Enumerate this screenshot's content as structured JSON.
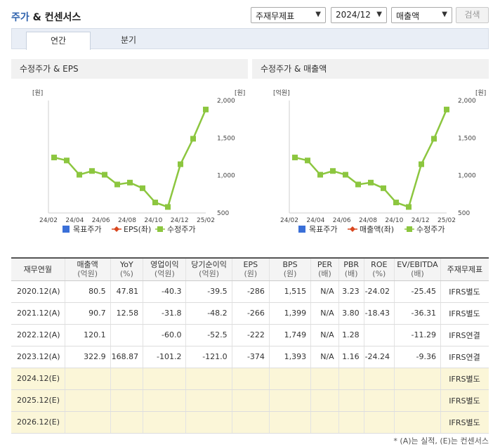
{
  "header": {
    "title_a": "주가",
    "title_b": "& 컨센서스"
  },
  "controls": {
    "report_select": "주재무제표",
    "period_select": "2024/12",
    "metric_select": "매출액",
    "search_label": "검색"
  },
  "tabs": [
    {
      "label": "연간"
    },
    {
      "label": "분기"
    }
  ],
  "chart_left": {
    "title": "수정주가 & EPS",
    "left_unit": "[원]",
    "right_unit": "[원]",
    "legend": [
      "목표주가",
      "EPS(좌)",
      "수정주가"
    ]
  },
  "chart_right": {
    "title": "수정주가 & 매출액",
    "left_unit": "[억원]",
    "right_unit": "[원]",
    "legend": [
      "목표주가",
      "매출액(좌)",
      "수정주가"
    ]
  },
  "chart_data": [
    {
      "type": "line",
      "title": "수정주가 & EPS",
      "x_ticks": [
        "24/02",
        "24/04",
        "24/06",
        "24/08",
        "24/10",
        "24/12",
        "25/02"
      ],
      "y_right_ticks": [
        "2,000",
        "1,500",
        "1,000",
        "500"
      ],
      "y_right_range": [
        500,
        2000
      ],
      "series": [
        {
          "name": "수정주가",
          "color": "#8cc63f",
          "values": [
            1240,
            1200,
            1010,
            1060,
            1010,
            880,
            905,
            830,
            640,
            580,
            1150,
            1490,
            1880
          ]
        }
      ]
    },
    {
      "type": "line",
      "title": "수정주가 & 매출액",
      "x_ticks": [
        "24/02",
        "24/04",
        "24/06",
        "24/08",
        "24/10",
        "24/12",
        "25/02"
      ],
      "y_right_ticks": [
        "2,000",
        "1,500",
        "1,000",
        "500"
      ],
      "y_right_range": [
        500,
        2000
      ],
      "series": [
        {
          "name": "수정주가",
          "color": "#8cc63f",
          "values": [
            1240,
            1200,
            1010,
            1060,
            1010,
            880,
            905,
            830,
            640,
            580,
            1150,
            1490,
            1880
          ]
        }
      ]
    }
  ],
  "legend_colors": {
    "target": "#3a6fd8",
    "eps": "#d9471f",
    "price": "#8cc63f"
  },
  "table": {
    "headers": [
      {
        "name": "재무연월",
        "unit": ""
      },
      {
        "name": "매출액",
        "unit": "(억원)"
      },
      {
        "name": "YoY",
        "unit": "(%)"
      },
      {
        "name": "영업이익",
        "unit": "(억원)"
      },
      {
        "name": "당기순이익",
        "unit": "(억원)"
      },
      {
        "name": "EPS",
        "unit": "(원)"
      },
      {
        "name": "BPS",
        "unit": "(원)"
      },
      {
        "name": "PER",
        "unit": "(배)"
      },
      {
        "name": "PBR",
        "unit": "(배)"
      },
      {
        "name": "ROE",
        "unit": "(%)"
      },
      {
        "name": "EV/EBITDA",
        "unit": "(배)"
      },
      {
        "name": "주재무제표",
        "unit": ""
      }
    ],
    "rows": [
      {
        "est": false,
        "cells": [
          "2020.12(A)",
          "80.5",
          "47.81",
          "-40.3",
          "-39.5",
          "-286",
          "1,515",
          "N/A",
          "3.23",
          "-24.02",
          "-25.45",
          "IFRS별도"
        ]
      },
      {
        "est": false,
        "cells": [
          "2021.12(A)",
          "90.7",
          "12.58",
          "-31.8",
          "-48.2",
          "-266",
          "1,399",
          "N/A",
          "3.80",
          "-18.43",
          "-36.31",
          "IFRS별도"
        ]
      },
      {
        "est": false,
        "cells": [
          "2022.12(A)",
          "120.1",
          "",
          "-60.0",
          "-52.5",
          "-222",
          "1,749",
          "N/A",
          "1.28",
          "",
          "-11.29",
          "IFRS연결"
        ]
      },
      {
        "est": false,
        "cells": [
          "2023.12(A)",
          "322.9",
          "168.87",
          "-101.2",
          "-121.0",
          "-374",
          "1,393",
          "N/A",
          "1.16",
          "-24.24",
          "-9.36",
          "IFRS연결"
        ]
      },
      {
        "est": true,
        "cells": [
          "2024.12(E)",
          "",
          "",
          "",
          "",
          "",
          "",
          "",
          "",
          "",
          "",
          "IFRS별도"
        ]
      },
      {
        "est": true,
        "cells": [
          "2025.12(E)",
          "",
          "",
          "",
          "",
          "",
          "",
          "",
          "",
          "",
          "",
          "IFRS별도"
        ]
      },
      {
        "est": true,
        "cells": [
          "2026.12(E)",
          "",
          "",
          "",
          "",
          "",
          "",
          "",
          "",
          "",
          "",
          "IFRS별도"
        ]
      }
    ]
  },
  "footnote": "* (A)는 실적, (E)는 컨센서스"
}
